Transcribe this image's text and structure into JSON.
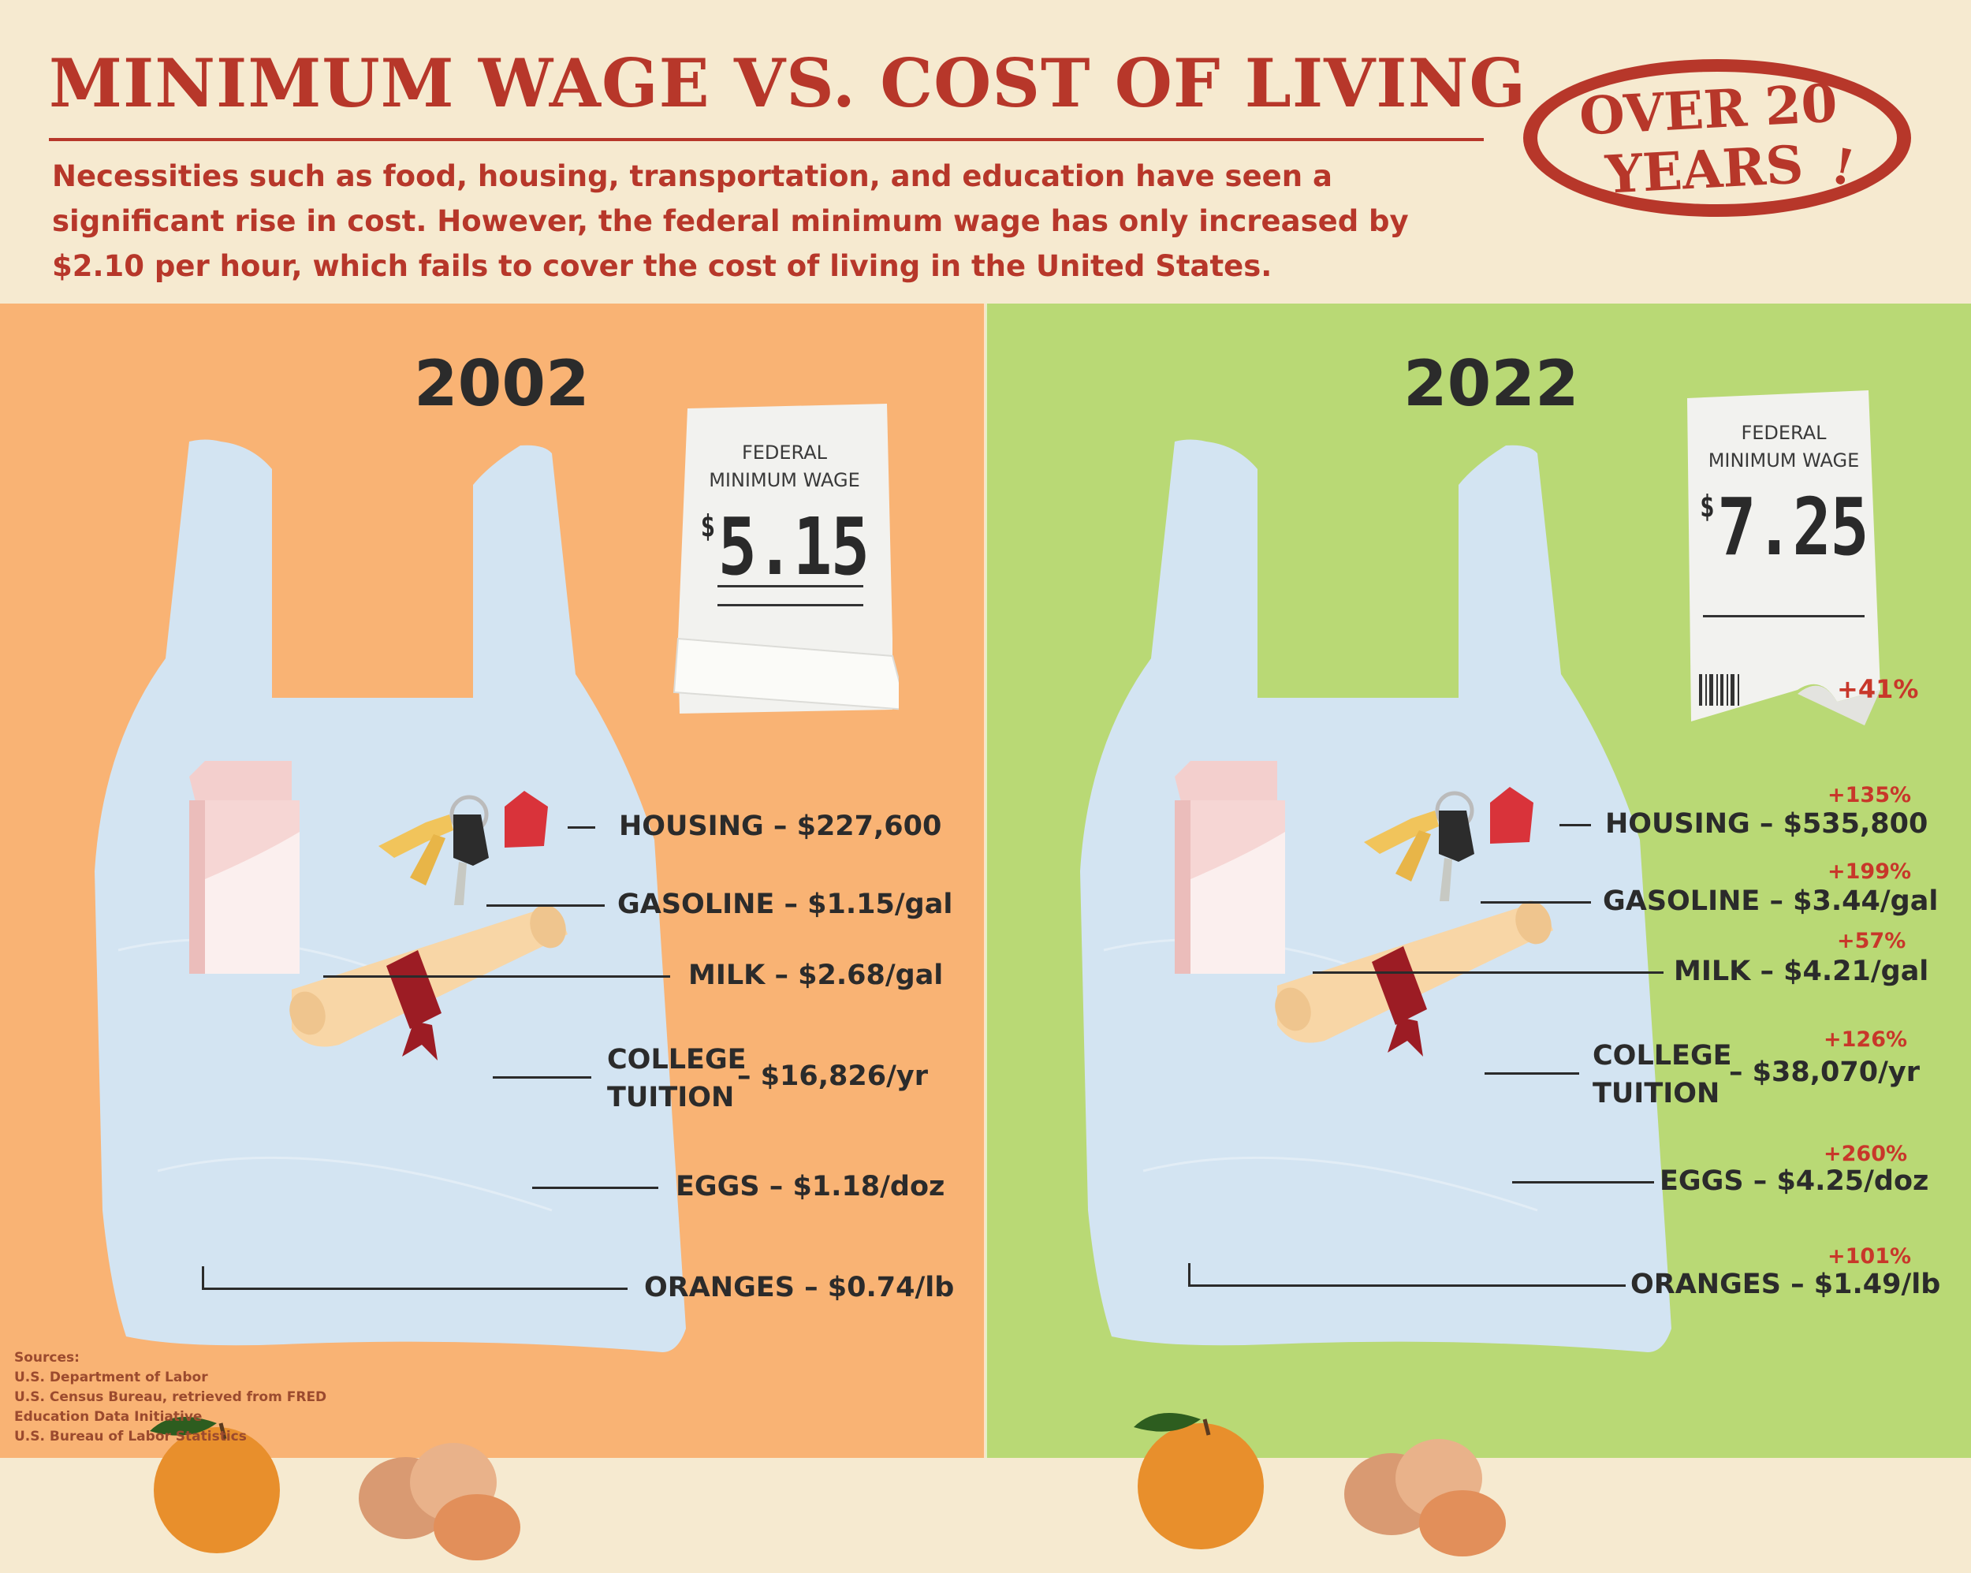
{
  "title": "MINIMUM WAGE VS. COST OF LIVING",
  "intro": "Necessities such as food, housing, transportation, and education have seen a significant rise in cost. However, the federal minimum wage has only increased by $2.10 per hour, which fails to cover the cost of living in the United States.",
  "badge": {
    "line1": "OVER 20",
    "line2": "YEARS",
    "mark": "!"
  },
  "colors": {
    "accent": "#b7372a",
    "panel_2002": "#f9b374",
    "panel_2022": "#b9d975",
    "header_bg": "#f6ead0",
    "bag": "#d3e4f2",
    "pct_red": "#c8372a"
  },
  "panels": {
    "left": {
      "year": "2002",
      "receipt": {
        "label1": "FEDERAL",
        "label2": "MINIMUM WAGE",
        "dollar": "$",
        "amount": "5.15"
      },
      "items": {
        "housing": "HOUSING – $227,600",
        "gasoline": "GASOLINE – $1.15/gal",
        "milk": "MILK – $2.68/gal",
        "college1": "COLLEGE",
        "college2": "TUITION",
        "college_price": "– $16,826/yr",
        "eggs": "EGGS – $1.18/doz",
        "oranges": "ORANGES – $0.74/lb"
      }
    },
    "right": {
      "year": "2022",
      "receipt": {
        "label1": "FEDERAL",
        "label2": "MINIMUM WAGE",
        "dollar": "$",
        "amount": "7.25",
        "change": "+41%"
      },
      "items": {
        "housing": "HOUSING – $535,800",
        "gasoline": "GASOLINE – $3.44/gal",
        "milk": "MILK – $4.21/gal",
        "college1": "COLLEGE",
        "college2": "TUITION",
        "college_price": "– $38,070/yr",
        "eggs": "EGGS – $4.25/doz",
        "oranges": "ORANGES – $1.49/lb"
      },
      "changes": {
        "housing": "+135%",
        "gasoline": "+199%",
        "milk": "+57%",
        "college": "+126%",
        "eggs": "+260%",
        "oranges": "+101%"
      }
    }
  },
  "sources": {
    "heading": "Sources:",
    "lines": [
      "U.S. Department of Labor",
      "U.S. Census Bureau, retrieved from FRED",
      "Education Data Initiative",
      "U.S. Bureau of Labor Statistics"
    ]
  },
  "icons": [
    "shopping-bag-icon",
    "receipt-icon",
    "milk-carton-icon",
    "keys-icon",
    "diploma-icon",
    "orange-icon",
    "eggs-icon"
  ]
}
